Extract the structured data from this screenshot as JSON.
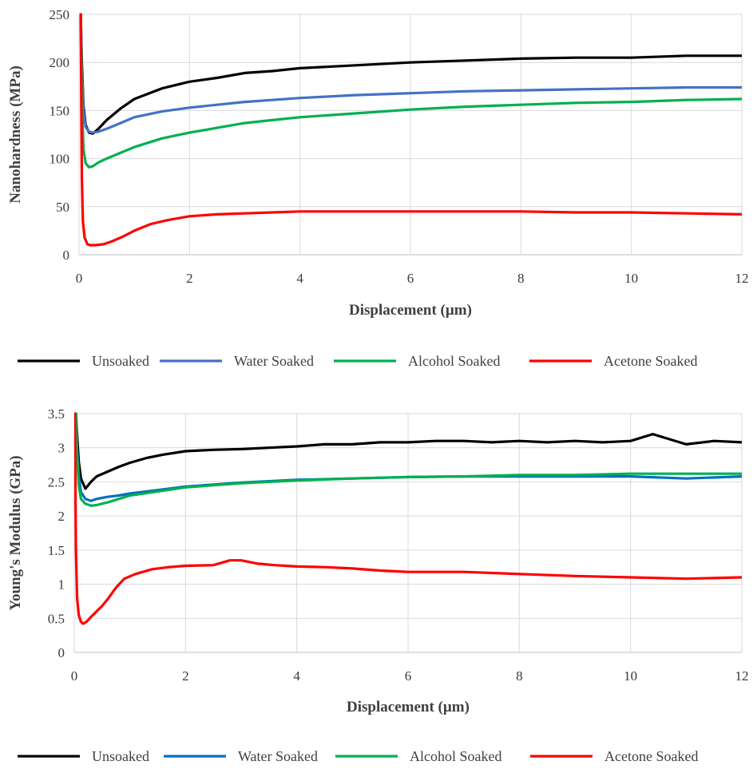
{
  "chart_data": [
    {
      "type": "line",
      "xlabel": "Displacement (µm)",
      "ylabel": "Nanohardness (MPa)",
      "xlim": [
        0,
        12
      ],
      "ylim": [
        0,
        250
      ],
      "xticks": [
        "0",
        "2",
        "4",
        "6",
        "8",
        "10",
        "12"
      ],
      "yticks": [
        "0",
        "50",
        "100",
        "150",
        "200",
        "250"
      ],
      "grid": true,
      "legend_position": "bottom",
      "series": [
        {
          "name": "Unsoaked",
          "color": "#000000",
          "x": [
            0.03,
            0.05,
            0.08,
            0.12,
            0.18,
            0.25,
            0.35,
            0.5,
            0.75,
            1.0,
            1.5,
            2.0,
            2.5,
            3.0,
            3.5,
            4.0,
            5.0,
            6.0,
            7.0,
            8.0,
            9.0,
            10.0,
            11.0,
            12.0
          ],
          "y": [
            250,
            200,
            155,
            135,
            127,
            126,
            131,
            140,
            152,
            162,
            173,
            180,
            184,
            189,
            191,
            194,
            197,
            200,
            202,
            204,
            205,
            205,
            207,
            207
          ]
        },
        {
          "name": "Water Soaked",
          "color": "#4472C4",
          "x": [
            0.03,
            0.05,
            0.08,
            0.12,
            0.18,
            0.25,
            0.35,
            0.5,
            0.75,
            1.0,
            1.5,
            2.0,
            2.5,
            3.0,
            3.5,
            4.0,
            5.0,
            6.0,
            7.0,
            8.0,
            9.0,
            10.0,
            11.0,
            12.0
          ],
          "y": [
            250,
            190,
            150,
            133,
            128,
            127,
            128,
            131,
            137,
            143,
            149,
            153,
            156,
            159,
            161,
            163,
            166,
            168,
            170,
            171,
            172,
            173,
            174,
            174
          ]
        },
        {
          "name": "Alcohol Soaked",
          "color": "#00B050",
          "x": [
            0.03,
            0.05,
            0.08,
            0.12,
            0.18,
            0.25,
            0.35,
            0.5,
            0.75,
            1.0,
            1.5,
            2.0,
            2.5,
            3.0,
            3.5,
            4.0,
            5.0,
            6.0,
            7.0,
            8.0,
            9.0,
            10.0,
            11.0,
            12.0
          ],
          "y": [
            250,
            160,
            110,
            95,
            91,
            92,
            96,
            100,
            106,
            112,
            121,
            127,
            132,
            137,
            140,
            143,
            147,
            151,
            154,
            156,
            158,
            159,
            161,
            162
          ]
        },
        {
          "name": "Acetone Soaked",
          "color": "#FF0000",
          "x": [
            0.03,
            0.05,
            0.07,
            0.1,
            0.15,
            0.2,
            0.3,
            0.45,
            0.6,
            0.8,
            1.0,
            1.3,
            1.6,
            2.0,
            2.5,
            3.0,
            3.5,
            4.0,
            5.0,
            6.0,
            7.0,
            8.0,
            9.0,
            10.0,
            11.0,
            12.0
          ],
          "y": [
            250,
            80,
            35,
            18,
            11,
            10,
            10,
            11,
            14,
            19,
            25,
            32,
            36,
            40,
            42,
            43,
            44,
            45,
            45,
            45,
            45,
            45,
            44,
            44,
            43,
            42
          ]
        }
      ]
    },
    {
      "type": "line",
      "xlabel": "Displacement (µm)",
      "ylabel": "Young's Modulus (GPa)",
      "xlim": [
        0,
        12
      ],
      "ylim": [
        0,
        3.5
      ],
      "xticks": [
        "0",
        "2",
        "4",
        "6",
        "8",
        "10",
        "12"
      ],
      "yticks": [
        "0",
        "0.5",
        "1",
        "1.5",
        "2",
        "2.5",
        "3",
        "3.5"
      ],
      "grid": true,
      "legend_position": "bottom",
      "series": [
        {
          "name": "Unsoaked",
          "color": "#000000",
          "x": [
            0.03,
            0.05,
            0.08,
            0.12,
            0.2,
            0.3,
            0.4,
            0.6,
            0.8,
            1.0,
            1.3,
            1.6,
            2.0,
            2.5,
            3.0,
            3.5,
            4.0,
            4.5,
            5.0,
            5.5,
            6.0,
            6.5,
            7.0,
            7.5,
            8.0,
            8.5,
            9.0,
            9.5,
            10.0,
            10.4,
            11.0,
            11.5,
            12.0
          ],
          "y": [
            3.5,
            3.2,
            2.8,
            2.55,
            2.4,
            2.5,
            2.58,
            2.65,
            2.72,
            2.78,
            2.85,
            2.9,
            2.95,
            2.97,
            2.98,
            3.0,
            3.02,
            3.05,
            3.05,
            3.08,
            3.08,
            3.1,
            3.1,
            3.08,
            3.1,
            3.08,
            3.1,
            3.08,
            3.1,
            3.2,
            3.05,
            3.1,
            3.08
          ]
        },
        {
          "name": "Water Soaked",
          "color": "#0070C0",
          "x": [
            0.03,
            0.05,
            0.08,
            0.12,
            0.2,
            0.3,
            0.4,
            0.6,
            0.8,
            1.0,
            1.5,
            2.0,
            2.5,
            3.0,
            3.5,
            4.0,
            5.0,
            6.0,
            7.0,
            8.0,
            9.0,
            10.0,
            11.0,
            12.0
          ],
          "y": [
            3.5,
            3.0,
            2.6,
            2.35,
            2.25,
            2.22,
            2.25,
            2.28,
            2.3,
            2.33,
            2.38,
            2.43,
            2.46,
            2.49,
            2.51,
            2.53,
            2.55,
            2.57,
            2.58,
            2.58,
            2.58,
            2.58,
            2.55,
            2.58
          ]
        },
        {
          "name": "Alcohol Soaked",
          "color": "#00B050",
          "x": [
            0.03,
            0.05,
            0.08,
            0.12,
            0.2,
            0.3,
            0.4,
            0.6,
            0.8,
            1.0,
            1.5,
            2.0,
            2.5,
            3.0,
            3.5,
            4.0,
            5.0,
            6.0,
            7.0,
            8.0,
            9.0,
            10.0,
            11.0,
            12.0
          ],
          "y": [
            3.5,
            2.9,
            2.45,
            2.25,
            2.18,
            2.15,
            2.16,
            2.2,
            2.25,
            2.3,
            2.36,
            2.42,
            2.45,
            2.48,
            2.5,
            2.52,
            2.55,
            2.57,
            2.58,
            2.6,
            2.6,
            2.62,
            2.62,
            2.62
          ]
        },
        {
          "name": "Acetone Soaked",
          "color": "#FF0000",
          "x": [
            0.01,
            0.03,
            0.05,
            0.08,
            0.12,
            0.16,
            0.22,
            0.3,
            0.4,
            0.5,
            0.6,
            0.75,
            0.9,
            1.1,
            1.4,
            1.7,
            2.0,
            2.5,
            2.8,
            3.0,
            3.3,
            3.6,
            4.0,
            4.5,
            5.0,
            5.5,
            6.0,
            7.0,
            8.0,
            9.0,
            10.0,
            11.0,
            12.0
          ],
          "y": [
            3.5,
            1.5,
            0.8,
            0.55,
            0.45,
            0.42,
            0.45,
            0.52,
            0.6,
            0.68,
            0.78,
            0.95,
            1.08,
            1.15,
            1.22,
            1.25,
            1.27,
            1.28,
            1.35,
            1.35,
            1.3,
            1.28,
            1.26,
            1.25,
            1.23,
            1.2,
            1.18,
            1.18,
            1.15,
            1.12,
            1.1,
            1.08,
            1.1
          ]
        }
      ]
    }
  ]
}
